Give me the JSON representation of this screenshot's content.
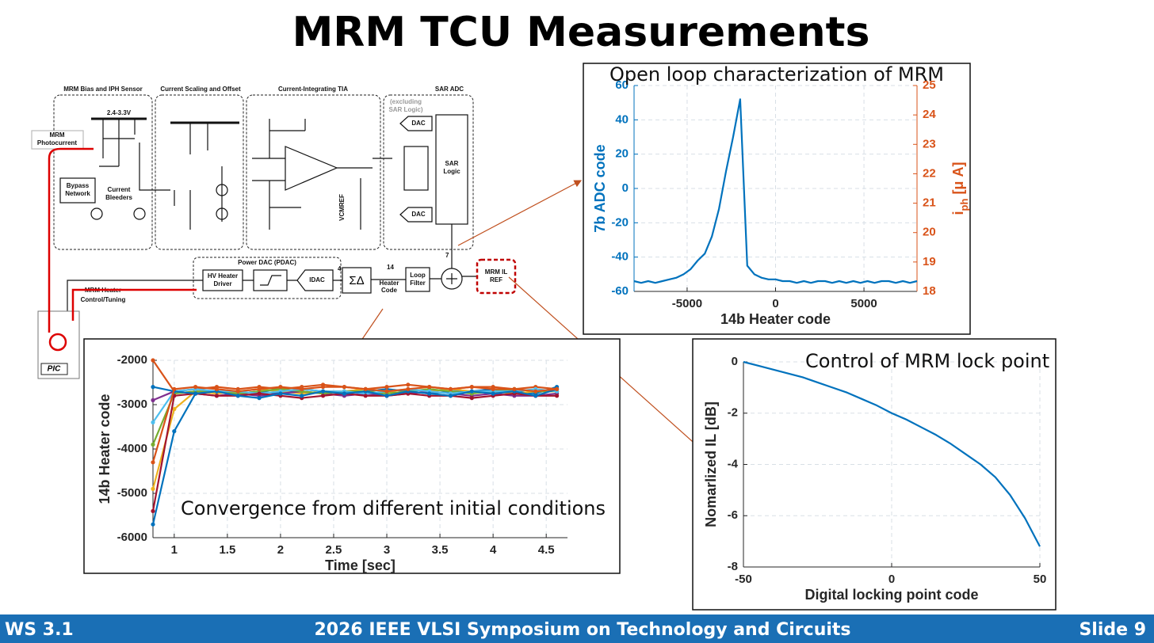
{
  "slide": {
    "title": "MRM TCU Measurements",
    "footer_left": "WS 3.1",
    "footer_center": "2026 IEEE VLSI Symposium on Technology and Circuits",
    "footer_right": "Slide 9"
  },
  "diagram": {
    "sections": [
      "MRM Bias and IPH Sensor",
      "Current Scaling and Offset",
      "Current-Integrating TIA",
      "SAR ADC"
    ],
    "supply": "2.4-3.3V",
    "photocurrent": [
      "MRM",
      "Photocurrent"
    ],
    "bypass": [
      "Bypass",
      "Network"
    ],
    "bleeders": [
      "Current",
      "Bleeders"
    ],
    "sar_note": [
      "(excluding",
      "SAR Logic)"
    ],
    "dac_top": "DAC",
    "dac_bottom": "DAC",
    "sar_logic": [
      "SAR",
      "Logic"
    ],
    "vcmref": "VCMREF",
    "pdac": "Power DAC (PDAC)",
    "hv_driver": [
      "HV Heater",
      "Driver"
    ],
    "idac": "IDAC",
    "sigma_delta": "ΣΔ",
    "bits_14": "14",
    "heater_code": [
      "Heater",
      "Code"
    ],
    "loop_filter": [
      "Loop",
      "Filter"
    ],
    "bits_7": "7",
    "bits_4": "4",
    "il_ref": [
      "MRM IL",
      "REF"
    ],
    "heater_control": [
      "MRM Heater",
      "Control/Tuning"
    ],
    "pic": "PIC"
  },
  "chart_data": [
    {
      "type": "line",
      "title": "Open loop characterization of MRM",
      "xlabel": "14b Heater code",
      "ylabel": "7b ADC code",
      "y2label": [
        "i",
        "ph",
        " [μ A]"
      ],
      "x": [
        -8000,
        -7600,
        -7200,
        -6800,
        -6400,
        -6000,
        -5600,
        -5200,
        -4800,
        -4400,
        -4000,
        -3600,
        -3200,
        -2800,
        -2400,
        -2000,
        -1600,
        -1200,
        -800,
        -400,
        0,
        400,
        800,
        1200,
        1600,
        2000,
        2400,
        2800,
        3200,
        3600,
        4000,
        4400,
        4800,
        5200,
        5600,
        6000,
        6400,
        6800,
        7200,
        7600,
        8000
      ],
      "series": [
        {
          "color": "#0072BD",
          "values": [
            -54,
            -55,
            -54,
            -55,
            -54,
            -53,
            -52,
            -50,
            -47,
            -42,
            -38,
            -28,
            -12,
            10,
            30,
            52,
            -45,
            -50,
            -52,
            -53,
            -53,
            -54,
            -54,
            -55,
            -54,
            -55,
            -54,
            -54,
            -55,
            -54,
            -55,
            -54,
            -55,
            -54,
            -55,
            -54,
            -54,
            -55,
            -54,
            -55,
            -54
          ]
        }
      ],
      "xlim": [
        -8000,
        8000
      ],
      "xticks": [
        -5000,
        0,
        5000
      ],
      "ylim": [
        -60,
        60
      ],
      "yticks": [
        -60,
        -40,
        -20,
        0,
        20,
        40,
        60
      ],
      "y2lim": [
        18,
        25
      ],
      "y2ticks": [
        18,
        19,
        20,
        21,
        22,
        23,
        24,
        25
      ],
      "ycolor": "#0072BD",
      "y2color": "#D95319",
      "grid": true
    },
    {
      "type": "line",
      "annotation": "Convergence from different initial conditions",
      "xlabel": "Time [sec]",
      "ylabel": "14b Heater code",
      "x": [
        0.8,
        1.0,
        1.2,
        1.4,
        1.6,
        1.8,
        2.0,
        2.2,
        2.4,
        2.6,
        2.8,
        3.0,
        3.2,
        3.4,
        3.6,
        3.8,
        4.0,
        4.2,
        4.4,
        4.6
      ],
      "series": [
        {
          "color": "#0072BD",
          "values": [
            -5700,
            -3600,
            -2750,
            -2700,
            -2750,
            -2700,
            -2750,
            -2650,
            -2700,
            -2750,
            -2700,
            -2650,
            -2700,
            -2750,
            -2700,
            -2700,
            -2650,
            -2700,
            -2750,
            -2600
          ]
        },
        {
          "color": "#D95319",
          "values": [
            -2000,
            -2700,
            -2650,
            -2600,
            -2650,
            -2600,
            -2650,
            -2600,
            -2550,
            -2600,
            -2650,
            -2600,
            -2550,
            -2600,
            -2650,
            -2600,
            -2600,
            -2650,
            -2600,
            -2650
          ]
        },
        {
          "color": "#EDB120",
          "values": [
            -4900,
            -3100,
            -2700,
            -2750,
            -2700,
            -2650,
            -2700,
            -2750,
            -2700,
            -2700,
            -2650,
            -2700,
            -2750,
            -2700,
            -2650,
            -2700,
            -2700,
            -2750,
            -2700,
            -2700
          ]
        },
        {
          "color": "#7E2F8E",
          "values": [
            -2900,
            -2700,
            -2750,
            -2800,
            -2750,
            -2800,
            -2750,
            -2700,
            -2750,
            -2800,
            -2750,
            -2800,
            -2750,
            -2700,
            -2750,
            -2800,
            -2750,
            -2800,
            -2800,
            -2750
          ]
        },
        {
          "color": "#77AC30",
          "values": [
            -3900,
            -2750,
            -2700,
            -2700,
            -2750,
            -2700,
            -2650,
            -2700,
            -2750,
            -2700,
            -2700,
            -2750,
            -2700,
            -2650,
            -2700,
            -2750,
            -2700,
            -2650,
            -2700,
            -2700
          ]
        },
        {
          "color": "#4DBEEE",
          "values": [
            -3400,
            -2700,
            -2650,
            -2700,
            -2700,
            -2750,
            -2700,
            -2650,
            -2700,
            -2700,
            -2750,
            -2700,
            -2650,
            -2700,
            -2750,
            -2700,
            -2700,
            -2700,
            -2650,
            -2700
          ]
        },
        {
          "color": "#A2142F",
          "values": [
            -5400,
            -2800,
            -2750,
            -2800,
            -2800,
            -2750,
            -2800,
            -2850,
            -2800,
            -2750,
            -2800,
            -2800,
            -2750,
            -2800,
            -2800,
            -2850,
            -2800,
            -2750,
            -2800,
            -2800
          ]
        },
        {
          "color": "#0072BD",
          "values": [
            -2600,
            -2700,
            -2750,
            -2700,
            -2800,
            -2850,
            -2750,
            -2800,
            -2700,
            -2750,
            -2700,
            -2800,
            -2700,
            -2750,
            -2800,
            -2700,
            -2750,
            -2700,
            -2800,
            -2650
          ]
        },
        {
          "color": "#D95319",
          "values": [
            -4300,
            -2650,
            -2600,
            -2650,
            -2700,
            -2650,
            -2600,
            -2650,
            -2600,
            -2600,
            -2650,
            -2700,
            -2650,
            -2600,
            -2650,
            -2600,
            -2650,
            -2650,
            -2700,
            -2650
          ]
        }
      ],
      "xlim": [
        0.8,
        4.7
      ],
      "xticks": [
        1,
        1.5,
        2,
        2.5,
        3,
        3.5,
        4,
        4.5
      ],
      "ylim": [
        -6000,
        -2000
      ],
      "yticks": [
        -6000,
        -5000,
        -4000,
        -3000,
        -2000
      ],
      "markers": true,
      "grid": true
    },
    {
      "type": "line",
      "title": "Control of MRM lock point",
      "xlabel": "Digital locking point code",
      "ylabel": "Nomarlized IL [dB]",
      "x": [
        -50,
        -45,
        -40,
        -35,
        -30,
        -25,
        -20,
        -15,
        -10,
        -5,
        0,
        5,
        10,
        15,
        20,
        25,
        30,
        35,
        40,
        45,
        50
      ],
      "series": [
        {
          "color": "#0072BD",
          "values": [
            0,
            -0.15,
            -0.3,
            -0.45,
            -0.6,
            -0.8,
            -1.0,
            -1.2,
            -1.45,
            -1.7,
            -2.0,
            -2.25,
            -2.55,
            -2.85,
            -3.2,
            -3.6,
            -4.0,
            -4.5,
            -5.2,
            -6.1,
            -7.2
          ]
        }
      ],
      "xlim": [
        -50,
        50
      ],
      "xticks": [
        -50,
        0,
        50
      ],
      "ylim": [
        -8,
        0
      ],
      "yticks": [
        -8,
        -6,
        -4,
        -2,
        0
      ],
      "grid": true
    }
  ]
}
